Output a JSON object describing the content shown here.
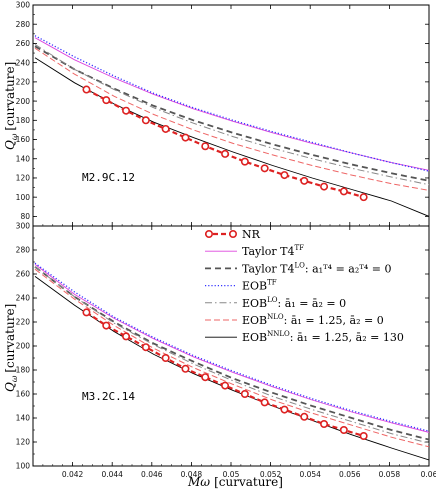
{
  "chart_data": [
    {
      "type": "line",
      "panel_label": "M2.9C.12",
      "xlabel": "",
      "ylabel_main": "Q",
      "ylabel_sub": "ω",
      "ylabel_bracket": "[curvature]",
      "xlim": [
        0.04,
        0.06
      ],
      "ylim": [
        70,
        300
      ],
      "y_ticks": [
        80,
        100,
        120,
        140,
        160,
        180,
        200,
        220,
        240,
        260,
        280,
        300
      ],
      "x_ticks": [],
      "series": [
        {
          "key": "nr",
          "style": "nr",
          "color": "#dd2222",
          "x": [
            0.0427,
            0.0437,
            0.0447,
            0.0457,
            0.0467,
            0.0477,
            0.0487,
            0.0497,
            0.0507,
            0.0517,
            0.0527,
            0.0537,
            0.0547,
            0.0557,
            0.0567
          ],
          "y": [
            212,
            201,
            190,
            180,
            171,
            162,
            153,
            145,
            137,
            130,
            123,
            117,
            111,
            106,
            100
          ]
        },
        {
          "key": "t4tf",
          "style": "t4tf",
          "color": "#dd44dd",
          "x": [
            0.0401,
            0.0421,
            0.0441,
            0.0461,
            0.0481,
            0.0501,
            0.0521,
            0.0541,
            0.0561,
            0.0581,
            0.06
          ],
          "y": [
            266,
            243,
            224,
            207,
            192,
            179,
            167,
            156,
            146,
            136,
            128
          ]
        },
        {
          "key": "eobtf",
          "style": "eobtf",
          "color": "#3333ff",
          "x": [
            0.0401,
            0.0421,
            0.0441,
            0.0461,
            0.0481,
            0.0501,
            0.0521,
            0.0541,
            0.0561,
            0.0581,
            0.06
          ],
          "y": [
            268,
            246,
            226,
            208,
            193,
            180,
            168,
            157,
            146,
            136,
            127
          ]
        },
        {
          "key": "t4lo",
          "style": "t4lo",
          "color": "#555555",
          "x": [
            0.0401,
            0.0421,
            0.0441,
            0.0461,
            0.0481,
            0.0501,
            0.0521,
            0.0541,
            0.0561,
            0.0581,
            0.06
          ],
          "y": [
            257,
            233,
            213,
            195,
            180,
            167,
            155,
            144,
            134,
            125,
            117
          ]
        },
        {
          "key": "eoblo",
          "style": "eoblo",
          "color": "#888888",
          "x": [
            0.0401,
            0.0421,
            0.0441,
            0.0461,
            0.0481,
            0.0501,
            0.0521,
            0.0541,
            0.0561,
            0.0581,
            0.06
          ],
          "y": [
            259,
            233,
            212,
            193,
            177,
            163,
            151,
            140,
            130,
            121,
            113
          ]
        },
        {
          "key": "eobnlo",
          "style": "eobnlo",
          "color": "#ee6666",
          "x": [
            0.0401,
            0.0421,
            0.0441,
            0.0461,
            0.0481,
            0.0501,
            0.0521,
            0.0541,
            0.0561,
            0.0581,
            0.06
          ],
          "y": [
            255,
            228,
            205,
            186,
            170,
            156,
            144,
            133,
            123,
            114,
            107
          ]
        },
        {
          "key": "eobnnlo",
          "style": "eobnnlo",
          "color": "#000000",
          "x": [
            0.0401,
            0.0421,
            0.0441,
            0.0461,
            0.0481,
            0.0501,
            0.0521,
            0.0541,
            0.0561,
            0.0581,
            0.06
          ],
          "y": [
            245,
            219,
            197,
            178,
            162,
            147,
            133,
            120,
            108,
            96,
            80
          ]
        }
      ]
    },
    {
      "type": "line",
      "panel_label": "M3.2C.14",
      "xlabel_main": "Mω",
      "xlabel_bracket": "[curvature]",
      "ylabel_main": "Q",
      "ylabel_sub": "ω",
      "ylabel_bracket": "[curvature]",
      "xlim": [
        0.04,
        0.06
      ],
      "ylim": [
        100,
        300
      ],
      "y_ticks": [
        100,
        120,
        140,
        160,
        180,
        200,
        220,
        240,
        260,
        280,
        300
      ],
      "x_ticks": [
        0.042,
        0.044,
        0.046,
        0.048,
        0.05,
        0.052,
        0.054,
        0.056,
        0.058,
        0.06
      ],
      "series": [
        {
          "key": "nr",
          "style": "nr",
          "color": "#dd2222",
          "x": [
            0.0427,
            0.0437,
            0.0447,
            0.0457,
            0.0467,
            0.0477,
            0.0487,
            0.0497,
            0.0507,
            0.0517,
            0.0527,
            0.0537,
            0.0547,
            0.0557,
            0.0567
          ],
          "y": [
            228,
            217,
            208,
            199,
            190,
            181,
            174,
            167,
            160,
            153,
            147,
            141,
            135,
            130,
            125
          ]
        },
        {
          "key": "t4tf",
          "style": "t4tf",
          "color": "#dd44dd",
          "x": [
            0.0401,
            0.0421,
            0.0441,
            0.0461,
            0.0481,
            0.0501,
            0.0521,
            0.0541,
            0.0561,
            0.0581,
            0.06
          ],
          "y": [
            268,
            243,
            223,
            206,
            191,
            178,
            166,
            155,
            145,
            136,
            128
          ]
        },
        {
          "key": "eobtf",
          "style": "eobtf",
          "color": "#3333ff",
          "x": [
            0.0401,
            0.0421,
            0.0441,
            0.0461,
            0.0481,
            0.0501,
            0.0521,
            0.0541,
            0.0561,
            0.0581,
            0.06
          ],
          "y": [
            269,
            245,
            224,
            207,
            192,
            179,
            167,
            156,
            146,
            137,
            129
          ]
        },
        {
          "key": "t4lo",
          "style": "t4lo",
          "color": "#555555",
          "x": [
            0.0401,
            0.0421,
            0.0441,
            0.0461,
            0.0481,
            0.0501,
            0.0521,
            0.0541,
            0.0561,
            0.0581,
            0.06
          ],
          "y": [
            266,
            241,
            220,
            202,
            187,
            173,
            161,
            150,
            140,
            130,
            122
          ]
        },
        {
          "key": "eoblo",
          "style": "eoblo",
          "color": "#888888",
          "x": [
            0.0401,
            0.0421,
            0.0441,
            0.0461,
            0.0481,
            0.0501,
            0.0521,
            0.0541,
            0.0561,
            0.0581,
            0.06
          ],
          "y": [
            266,
            241,
            219,
            201,
            185,
            171,
            158,
            147,
            137,
            127,
            119
          ]
        },
        {
          "key": "eobnlo",
          "style": "eobnlo",
          "color": "#ee6666",
          "x": [
            0.0401,
            0.0421,
            0.0441,
            0.0461,
            0.0481,
            0.0501,
            0.0521,
            0.0541,
            0.0561,
            0.0581,
            0.06
          ],
          "y": [
            264,
            239,
            217,
            198,
            182,
            168,
            155,
            144,
            134,
            124,
            116
          ]
        },
        {
          "key": "eobnnlo",
          "style": "eobnnlo",
          "color": "#000000",
          "x": [
            0.0401,
            0.0421,
            0.0441,
            0.0461,
            0.0481,
            0.0501,
            0.0521,
            0.0541,
            0.0561,
            0.0581,
            0.06
          ],
          "y": [
            258,
            234,
            212,
            193,
            177,
            163,
            150,
            138,
            126,
            115,
            105
          ]
        }
      ],
      "legend": {
        "position": "upper-right",
        "entries": [
          {
            "style": "nr",
            "color": "#dd2222",
            "label": "NR",
            "sup": "",
            "rest": ""
          },
          {
            "style": "t4tf",
            "color": "#dd44dd",
            "label": "Taylor T4",
            "sup": "TF",
            "rest": ""
          },
          {
            "style": "t4lo",
            "color": "#555555",
            "label": "Taylor T4",
            "sup": "LO",
            "rest": ":  a₁ᵀ⁴ = a₂ᵀ⁴ = 0"
          },
          {
            "style": "eobtf",
            "color": "#3333ff",
            "label": "EOB",
            "sup": "TF",
            "rest": ""
          },
          {
            "style": "eoblo",
            "color": "#888888",
            "label": "EOB",
            "sup": "LO",
            "rest": ":  ā₁ = ā₂ = 0"
          },
          {
            "style": "eobnlo",
            "color": "#ee6666",
            "label": "EOB",
            "sup": "NLO",
            "rest": ":  ā₁ = 1.25, ā₂ = 0"
          },
          {
            "style": "eobnnlo",
            "color": "#000000",
            "label": "EOB",
            "sup": "NNLO",
            "rest": ":  ā₁ = 1.25, ā₂ = 130"
          }
        ]
      }
    }
  ]
}
